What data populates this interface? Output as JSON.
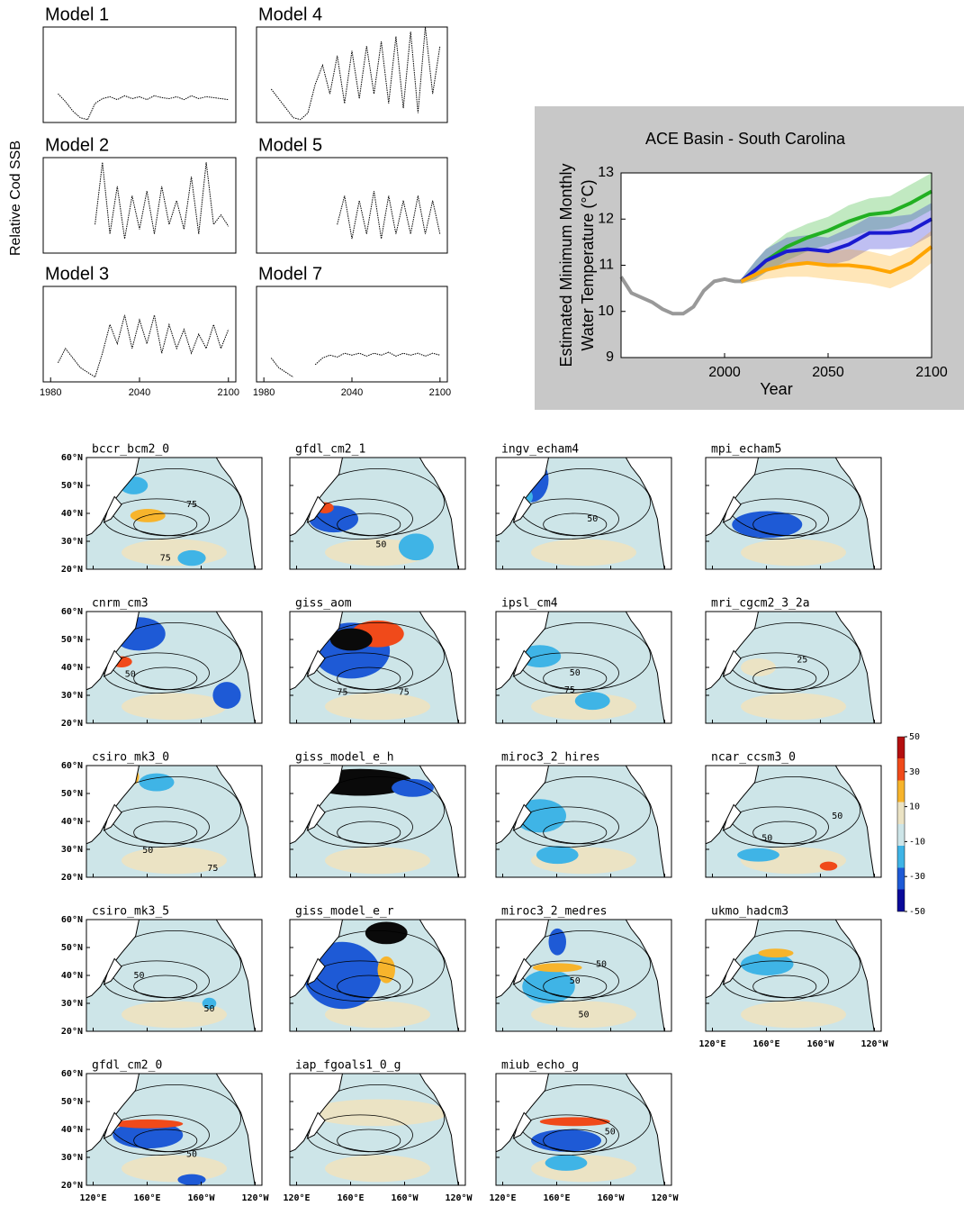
{
  "chart_data": [
    {
      "type": "line",
      "title": "Model 1",
      "ylabel": "Relative Cod SSB",
      "x": [
        1985,
        1990,
        1995,
        2000,
        2005,
        2010,
        2015,
        2020,
        2025,
        2030,
        2035,
        2040,
        2045,
        2050,
        2055,
        2060,
        2065,
        2070,
        2075,
        2080,
        2085,
        2090,
        2095,
        2100
      ],
      "series": [
        {
          "color": "#000000",
          "values": [
            0.3,
            0.22,
            0.12,
            0.05,
            0.03,
            0.2,
            0.25,
            0.27,
            0.24,
            0.28,
            0.25,
            0.27,
            0.24,
            0.28,
            0.26,
            0.25,
            0.27,
            0.24,
            0.28,
            0.25,
            0.27,
            0.26,
            0.25,
            0.24
          ]
        }
      ],
      "xlim": [
        1975,
        2105
      ],
      "ylim": [
        0,
        1
      ]
    },
    {
      "type": "line",
      "title": "Model 4",
      "x": [
        1985,
        1990,
        1995,
        2000,
        2005,
        2010,
        2015,
        2020,
        2025,
        2030,
        2035,
        2040,
        2045,
        2050,
        2055,
        2060,
        2065,
        2070,
        2075,
        2080,
        2085,
        2090,
        2095,
        2100
      ],
      "series": [
        {
          "color": "#000000",
          "values": [
            0.35,
            0.25,
            0.15,
            0.05,
            0.03,
            0.1,
            0.4,
            0.6,
            0.3,
            0.7,
            0.2,
            0.75,
            0.25,
            0.8,
            0.3,
            0.85,
            0.2,
            0.9,
            0.15,
            0.95,
            0.1,
            1.0,
            0.3,
            0.8
          ]
        }
      ],
      "xlim": [
        1975,
        2105
      ],
      "ylim": [
        0,
        1
      ]
    },
    {
      "type": "line",
      "title": "Model 2",
      "x": [
        1985,
        1990,
        1995,
        2000,
        2005,
        2010,
        2015,
        2020,
        2025,
        2030,
        2035,
        2040,
        2045,
        2050,
        2055,
        2060,
        2065,
        2070,
        2075,
        2080,
        2085,
        2090,
        2095,
        2100
      ],
      "series": [
        {
          "color": "#000000",
          "values": [
            null,
            null,
            null,
            null,
            null,
            0.3,
            0.95,
            0.2,
            0.7,
            0.15,
            0.6,
            0.25,
            0.65,
            0.2,
            0.7,
            0.3,
            0.55,
            0.25,
            0.8,
            0.2,
            0.95,
            0.3,
            0.4,
            0.28
          ]
        }
      ],
      "xlim": [
        1975,
        2105
      ],
      "ylim": [
        0,
        1
      ]
    },
    {
      "type": "line",
      "title": "Model 5",
      "x": [
        1985,
        1990,
        1995,
        2000,
        2005,
        2010,
        2015,
        2020,
        2025,
        2030,
        2035,
        2040,
        2045,
        2050,
        2055,
        2060,
        2065,
        2070,
        2075,
        2080,
        2085,
        2090,
        2095,
        2100
      ],
      "series": [
        {
          "color": "#000000",
          "values": [
            null,
            null,
            null,
            null,
            null,
            null,
            null,
            null,
            null,
            0.3,
            0.6,
            0.15,
            0.55,
            0.2,
            0.65,
            0.15,
            0.6,
            0.2,
            0.55,
            0.2,
            0.6,
            0.2,
            0.55,
            0.2
          ]
        }
      ],
      "xlim": [
        1975,
        2105
      ],
      "ylim": [
        0,
        1
      ]
    },
    {
      "type": "line",
      "title": "Model 3",
      "x": [
        1985,
        1990,
        1995,
        2000,
        2005,
        2010,
        2015,
        2020,
        2025,
        2030,
        2035,
        2040,
        2045,
        2050,
        2055,
        2060,
        2065,
        2070,
        2075,
        2080,
        2085,
        2090,
        2095,
        2100
      ],
      "series": [
        {
          "color": "#000000",
          "values": [
            0.2,
            0.35,
            0.25,
            0.15,
            0.1,
            0.05,
            0.3,
            0.6,
            0.4,
            0.7,
            0.35,
            0.65,
            0.4,
            0.7,
            0.3,
            0.6,
            0.35,
            0.55,
            0.3,
            0.5,
            0.35,
            0.6,
            0.35,
            0.55
          ]
        }
      ],
      "xlim": [
        1975,
        2105
      ],
      "ylim": [
        0,
        1
      ],
      "xticks": [
        1980,
        2040,
        2100
      ]
    },
    {
      "type": "line",
      "title": "Model 7",
      "x": [
        1985,
        1990,
        1995,
        2000,
        2005,
        2010,
        2015,
        2020,
        2025,
        2030,
        2035,
        2040,
        2045,
        2050,
        2055,
        2060,
        2065,
        2070,
        2075,
        2080,
        2085,
        2090,
        2095,
        2100
      ],
      "series": [
        {
          "color": "#000000",
          "values": [
            0.25,
            0.15,
            0.1,
            0.05,
            null,
            null,
            0.18,
            0.25,
            0.28,
            0.26,
            0.3,
            0.28,
            0.3,
            0.27,
            0.3,
            0.28,
            0.31,
            0.27,
            0.3,
            0.28,
            0.3,
            0.27,
            0.3,
            0.28
          ]
        }
      ],
      "xlim": [
        1975,
        2105
      ],
      "ylim": [
        0,
        1
      ],
      "xticks": [
        1980,
        2040,
        2100
      ]
    },
    {
      "type": "line",
      "title": "ACE Basin - South Carolina",
      "ylabel": [
        "Estimated Minimum Monthly",
        "Water Temperature (°C)"
      ],
      "xlabel": "Year",
      "xlim": [
        1950,
        2100
      ],
      "ylim": [
        9,
        13
      ],
      "xticks": [
        2000,
        2050,
        2100
      ],
      "yticks": [
        9,
        10,
        11,
        12,
        13
      ],
      "series": [
        {
          "color": "#999999",
          "x": [
            1950,
            1955,
            1960,
            1965,
            1970,
            1975,
            1980,
            1985,
            1990,
            1995,
            2000,
            2005,
            2008
          ],
          "values": [
            10.75,
            10.4,
            10.3,
            10.2,
            10.05,
            9.95,
            9.95,
            10.1,
            10.45,
            10.65,
            10.7,
            10.65,
            10.65
          ]
        },
        {
          "color": "#22b022",
          "x": [
            2008,
            2015,
            2020,
            2030,
            2040,
            2050,
            2060,
            2070,
            2080,
            2090,
            2100
          ],
          "values": [
            10.65,
            10.9,
            11.1,
            11.4,
            11.6,
            11.75,
            11.95,
            12.1,
            12.15,
            12.35,
            12.6
          ],
          "lower": [
            10.6,
            10.7,
            10.85,
            11.1,
            11.3,
            11.45,
            11.6,
            11.75,
            11.8,
            11.95,
            12.2
          ],
          "upper": [
            10.7,
            11.1,
            11.35,
            11.7,
            11.9,
            12.05,
            12.3,
            12.45,
            12.5,
            12.75,
            13.0
          ]
        },
        {
          "color": "#1a1ad0",
          "x": [
            2008,
            2015,
            2020,
            2030,
            2040,
            2050,
            2060,
            2070,
            2080,
            2090,
            2100
          ],
          "values": [
            10.65,
            10.9,
            11.1,
            11.3,
            11.35,
            11.3,
            11.45,
            11.7,
            11.7,
            11.75,
            12.0
          ],
          "lower": [
            10.6,
            10.7,
            10.85,
            11.0,
            11.05,
            11.0,
            11.1,
            11.35,
            11.35,
            11.4,
            11.65
          ],
          "upper": [
            10.7,
            11.1,
            11.35,
            11.6,
            11.65,
            11.6,
            11.8,
            12.05,
            12.05,
            12.1,
            12.35
          ]
        },
        {
          "color": "#ffa500",
          "x": [
            2008,
            2015,
            2020,
            2030,
            2040,
            2050,
            2060,
            2070,
            2080,
            2090,
            2100
          ],
          "values": [
            10.65,
            10.8,
            10.9,
            11.0,
            11.05,
            11.0,
            11.0,
            10.95,
            10.85,
            11.05,
            11.4
          ],
          "lower": [
            10.6,
            10.65,
            10.7,
            10.75,
            10.75,
            10.7,
            10.65,
            10.6,
            10.5,
            10.7,
            11.05
          ],
          "upper": [
            10.7,
            10.95,
            11.1,
            11.25,
            11.35,
            11.3,
            11.35,
            11.3,
            11.2,
            11.4,
            11.75
          ]
        }
      ]
    }
  ],
  "maps": {
    "xlim": [
      115,
      245
    ],
    "ylim": [
      20,
      60
    ],
    "lat_ticks": [
      {
        "value": 60,
        "label": "60°N"
      },
      {
        "value": 50,
        "label": "50°N"
      },
      {
        "value": 40,
        "label": "40°N"
      },
      {
        "value": 30,
        "label": "30°N"
      },
      {
        "value": 20,
        "label": "20°N"
      }
    ],
    "lon_ticks": [
      {
        "value": 120,
        "label": "120°E"
      },
      {
        "value": 160,
        "label": "160°E"
      },
      {
        "value": 200,
        "label": "160°W"
      },
      {
        "value": 240,
        "label": "120°W"
      }
    ],
    "panels": [
      {
        "title": "bccr_bcm2_0",
        "contour_labels": [
          "75",
          "75"
        ]
      },
      {
        "title": "gfdl_cm2_1",
        "contour_labels": [
          "50"
        ]
      },
      {
        "title": "ingv_echam4",
        "contour_labels": [
          "50"
        ]
      },
      {
        "title": "mpi_echam5"
      },
      {
        "title": "cnrm_cm3",
        "contour_labels": [
          "50"
        ]
      },
      {
        "title": "giss_aom",
        "contour_labels": [
          "75",
          "75"
        ]
      },
      {
        "title": "ipsl_cm4",
        "contour_labels": [
          "50",
          "75"
        ]
      },
      {
        "title": "mri_cgcm2_3_2a",
        "contour_labels": [
          "25"
        ]
      },
      {
        "title": "csiro_mk3_0",
        "contour_labels": [
          "50",
          "75"
        ]
      },
      {
        "title": "giss_model_e_h"
      },
      {
        "title": "miroc3_2_hires"
      },
      {
        "title": "ncar_ccsm3_0",
        "contour_labels": [
          "50",
          "50"
        ]
      },
      {
        "title": "csiro_mk3_5",
        "contour_labels": [
          "50",
          "50"
        ]
      },
      {
        "title": "giss_model_e_r"
      },
      {
        "title": "miroc3_2_medres",
        "contour_labels": [
          "50",
          "50",
          "50"
        ]
      },
      {
        "title": "ukmo_hadcm3"
      },
      {
        "title": "gfdl_cm2_0",
        "contour_labels": [
          "50"
        ]
      },
      {
        "title": "iap_fgoals1_0_g"
      },
      {
        "title": "miub_echo_g",
        "contour_labels": [
          "50"
        ]
      }
    ],
    "colorbar": {
      "ticks": [
        50,
        30,
        10,
        -10,
        -30,
        -50
      ],
      "lim": [
        -50,
        50
      ],
      "colors": [
        "#b40f0f",
        "#f04a1a",
        "#f7b42c",
        "#ebe3c4",
        "#cde5e8",
        "#3fb4e6",
        "#1e5ad6",
        "#0a0a9a"
      ]
    }
  }
}
